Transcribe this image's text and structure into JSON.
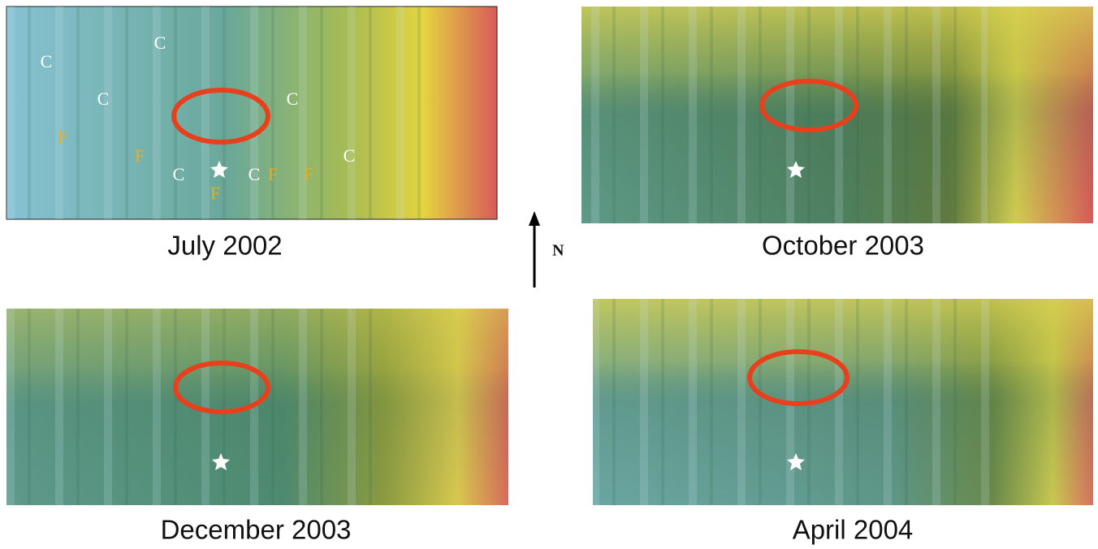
{
  "panels": [
    {
      "caption": "July 2002",
      "labels": [
        "C",
        "C",
        "C",
        "C",
        "F",
        "F",
        "C",
        "C",
        "F",
        "F",
        "C",
        "F"
      ]
    },
    {
      "caption": "October 2003"
    },
    {
      "caption": "December 2003"
    },
    {
      "caption": "April 2004"
    }
  ],
  "north": "N"
}
